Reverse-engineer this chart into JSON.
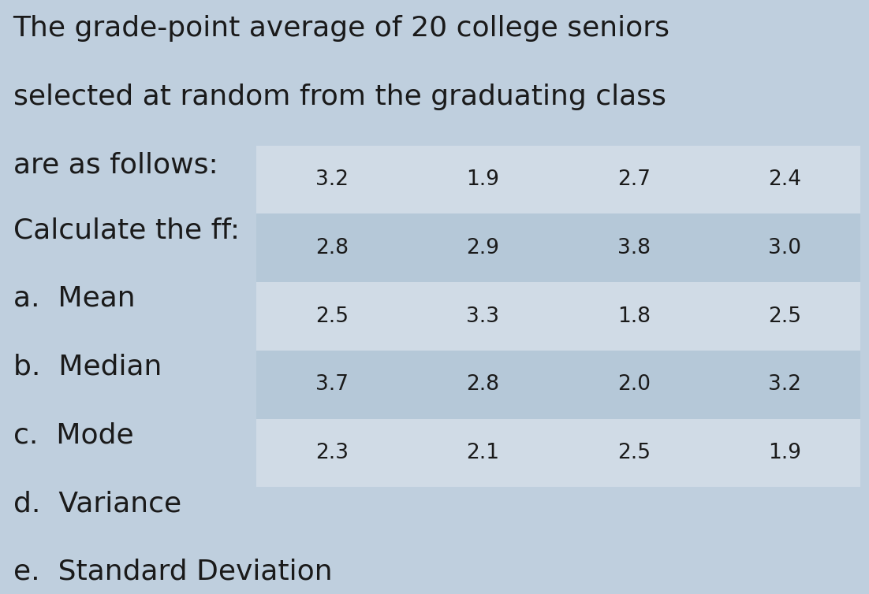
{
  "title_lines": [
    "The grade-point average of 20 college seniors",
    "selected at random from the graduating class",
    "are as follows:"
  ],
  "questions_lines": [
    "Calculate the ff:",
    "a.  Mean",
    "b.  Median",
    "c.  Mode",
    "d.  Variance",
    "e.  Standard Deviation"
  ],
  "table_data": [
    [
      "3.2",
      "1.9",
      "2.7",
      "2.4"
    ],
    [
      "2.8",
      "2.9",
      "3.8",
      "3.0"
    ],
    [
      "2.5",
      "3.3",
      "1.8",
      "2.5"
    ],
    [
      "3.7",
      "2.8",
      "2.0",
      "3.2"
    ],
    [
      "2.3",
      "2.1",
      "2.5",
      "1.9"
    ]
  ],
  "row_colors": [
    "#d0dbe6",
    "#b5c8d8",
    "#d0dbe6",
    "#b5c8d8",
    "#d0dbe6"
  ],
  "bg_color": "#bfcfde",
  "text_color": "#1a1a1a",
  "font_size_title": 26,
  "font_size_questions": 26,
  "font_size_table": 19
}
